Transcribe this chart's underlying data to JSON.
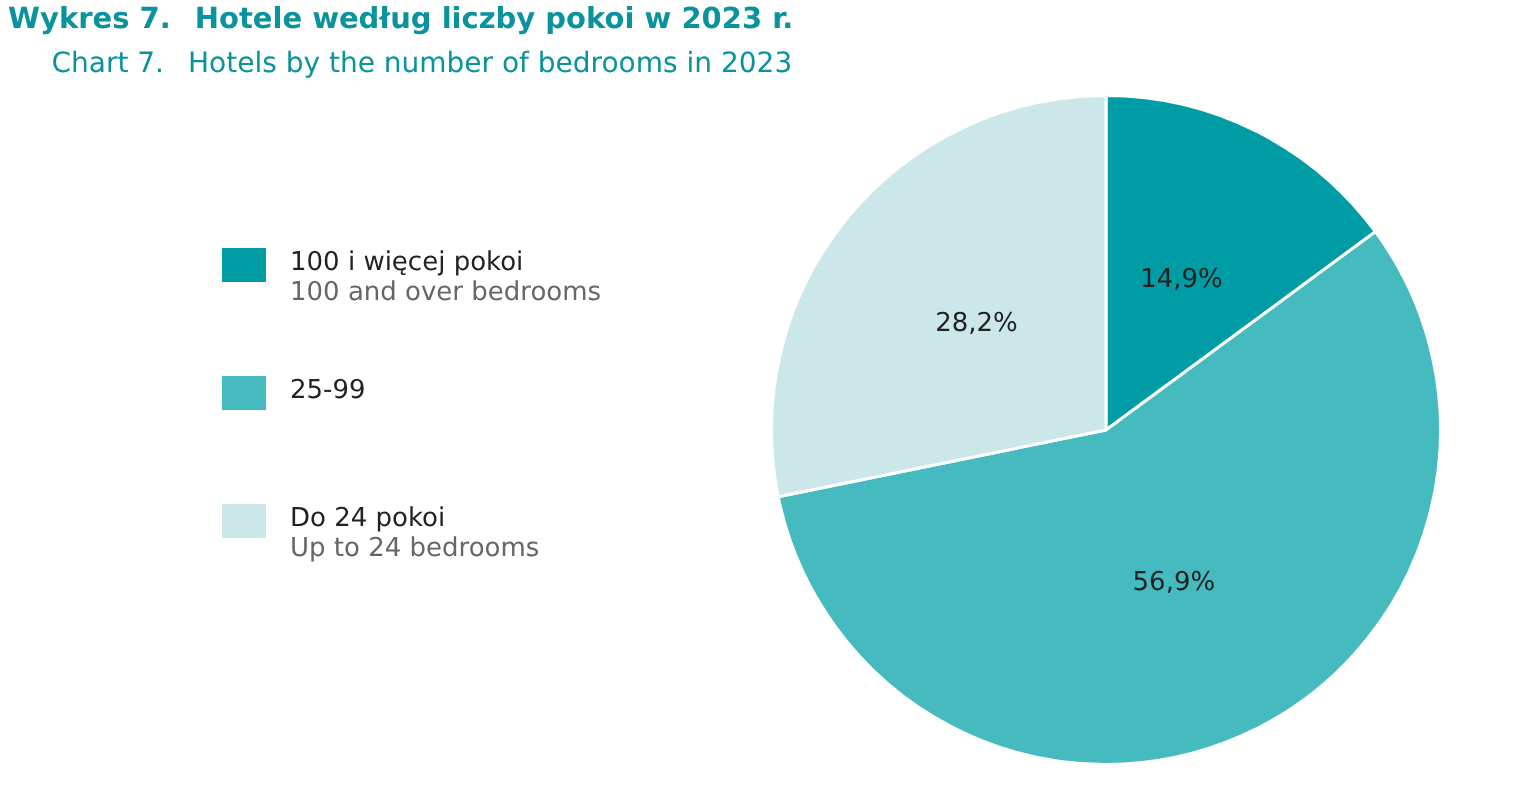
{
  "chart_data": {
    "type": "pie",
    "title": "Wykres 7. Hotele według liczby pokoi w 2023 r.",
    "subtitle": "Chart 7. Hotels by the number of bedrooms in 2023",
    "categories": [
      "100 i więcej pokoi\n100 and over bedrooms",
      "25-99",
      "Do 24 pokoi\nUp to 24 bedrooms"
    ],
    "values": [
      14.9,
      56.9,
      28.2
    ],
    "value_labels": [
      "14,9%",
      "56,9%",
      "28,2%"
    ],
    "colors": [
      "#009ca6",
      "#45babf",
      "#cbe7e9"
    ],
    "legend": "left"
  }
}
